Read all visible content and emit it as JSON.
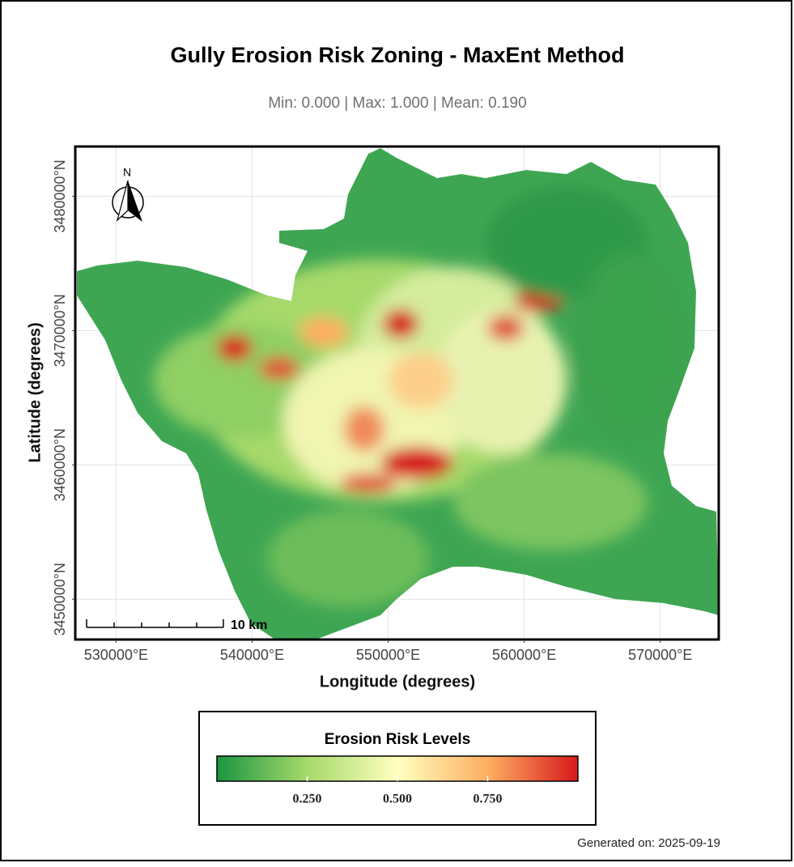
{
  "title": "Gully Erosion Risk Zoning - MaxEnt Method",
  "subtitle": "Min: 0.000 | Max: 1.000 | Mean: 0.190",
  "map": {
    "xlabel": "Longitude (degrees)",
    "ylabel": "Latitude (degrees)",
    "xlim": [
      527000,
      574300
    ],
    "ylim": [
      3447000,
      3483700
    ],
    "xticks": [
      {
        "value": 530000,
        "label": "530000°E"
      },
      {
        "value": 540000,
        "label": "540000°E"
      },
      {
        "value": 550000,
        "label": "550000°E"
      },
      {
        "value": 560000,
        "label": "560000°E"
      },
      {
        "value": 570000,
        "label": "570000°E"
      }
    ],
    "yticks": [
      {
        "value": 3450000,
        "label": "3450000°N"
      },
      {
        "value": 3460000,
        "label": "3460000°N"
      },
      {
        "value": 3470000,
        "label": "3470000°N"
      },
      {
        "value": 3480000,
        "label": "3480000°N"
      }
    ],
    "grid": true,
    "north_label": "N",
    "scale_label": "10 km"
  },
  "legend": {
    "title": "Erosion Risk Levels",
    "lim": [
      0,
      1
    ],
    "ticks": [
      {
        "value": 0.25,
        "label": "0.250"
      },
      {
        "value": 0.5,
        "label": "0.500"
      },
      {
        "value": 0.75,
        "label": "0.750"
      }
    ],
    "colors": [
      "#1a9641",
      "#a6d96a",
      "#ffffbf",
      "#fdae61",
      "#d7191c"
    ]
  },
  "footer": "Generated on: 2025-09-19"
}
